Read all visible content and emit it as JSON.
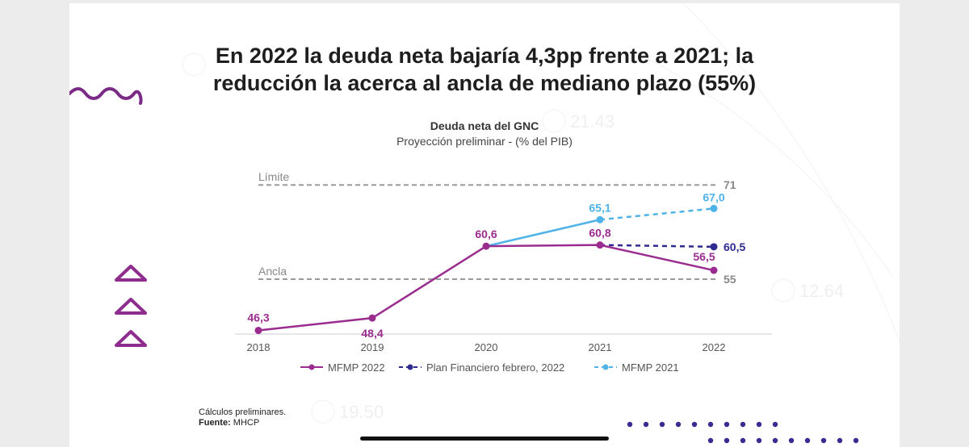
{
  "slide": {
    "title_line1": "En 2022 la deuda neta bajaría 4,3pp frente a 2021; la",
    "title_line2": "reducción la acerca al ancla de mediano plazo (55%)",
    "note": "Cálculos preliminares.",
    "source_label": "Fuente:",
    "source_value": "MHCP",
    "watermark_values": [
      "21.43",
      "12.64",
      "19.50"
    ]
  },
  "chart_data": {
    "type": "line",
    "title": "Deuda neta del GNC",
    "subtitle": "Proyección preliminar - (% del PIB)",
    "categories": [
      "2018",
      "2019",
      "2020",
      "2021",
      "2022"
    ],
    "ylim": [
      40,
      75
    ],
    "series": [
      {
        "name": "MFMP 2022",
        "color": "#9b2c8f",
        "dash": "solid",
        "x": [
          "2018",
          "2019",
          "2020",
          "2021",
          "2022"
        ],
        "values": [
          46.3,
          48.4,
          60.6,
          60.8,
          56.5
        ],
        "labels": [
          "46,3",
          "48,4",
          "60,6",
          "60,8",
          "56,5"
        ]
      },
      {
        "name": "Plan Financiero febrero, 2022",
        "color": "#2e2a8f",
        "dash": "dashed",
        "x": [
          "2021",
          "2022"
        ],
        "values": [
          60.8,
          60.5
        ],
        "labels": [
          "",
          "60,5"
        ]
      },
      {
        "name": "MFMP 2021",
        "color": "#4fb3e8",
        "dash": "mixed",
        "x": [
          "2020",
          "2021",
          "2022"
        ],
        "values": [
          60.6,
          65.1,
          67.0
        ],
        "labels": [
          "",
          "65,1",
          "67,0"
        ]
      }
    ],
    "reference_lines": [
      {
        "name": "Límite",
        "value": 71,
        "label": "71"
      },
      {
        "name": "Ancla",
        "value": 55,
        "label": "55"
      }
    ]
  },
  "colors": {
    "purple": "#9b2c8f",
    "navy": "#2e2a8f",
    "light_blue": "#4fb3e8",
    "ref_gray": "#9a9a9a"
  }
}
